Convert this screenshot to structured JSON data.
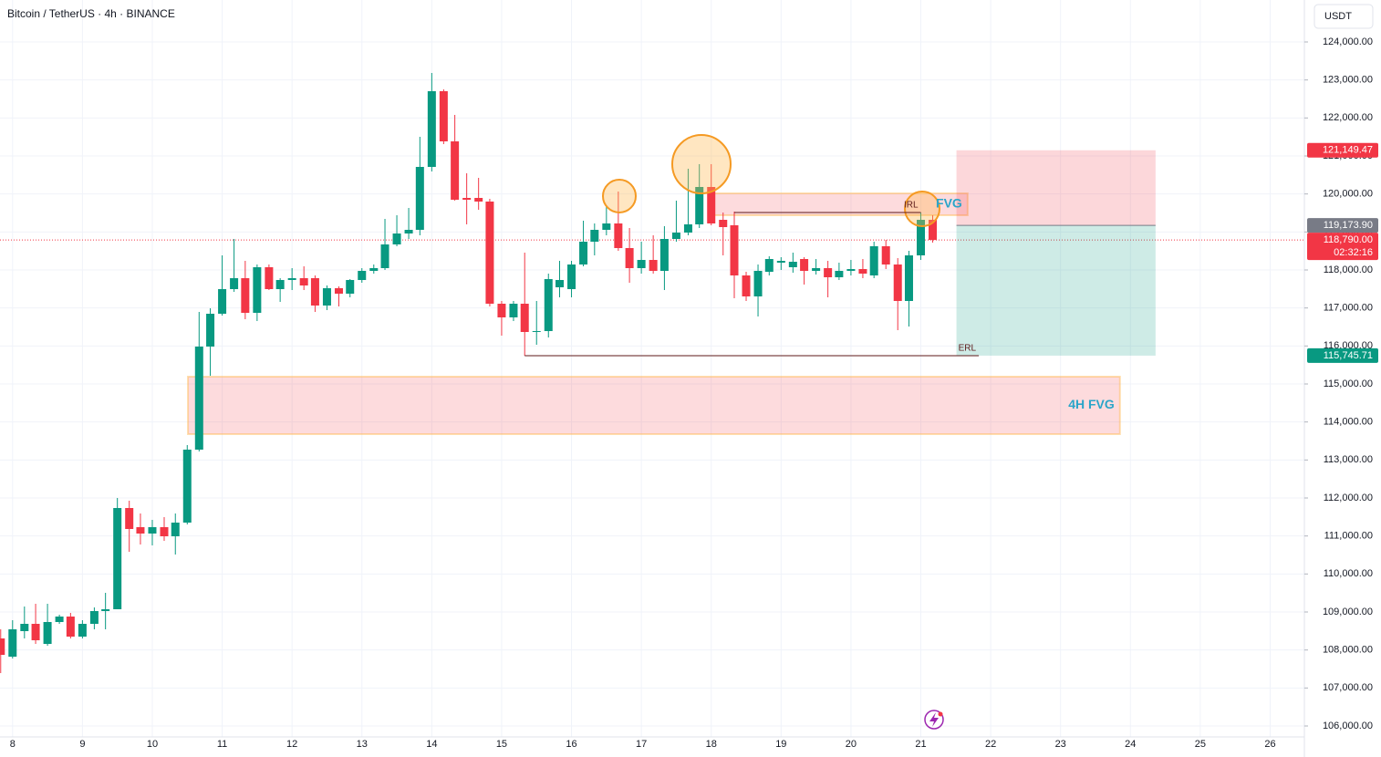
{
  "header": {
    "symbol": "Bitcoin / TetherUS · 4h · BINANCE",
    "currency": "USDT"
  },
  "chart_data": {
    "type": "candlestick",
    "up_color": "#089981",
    "down_color": "#f23645",
    "grid": true,
    "xlim": [
      7.82,
      26.49
    ],
    "ylim": [
      105712,
      125104
    ],
    "xticks": [
      8,
      9,
      10,
      11,
      12,
      13,
      14,
      15,
      16,
      17,
      18,
      19,
      20,
      21,
      22,
      23,
      24,
      25,
      26
    ],
    "yticks": [
      {
        "value": 106000,
        "label": "106,000.00"
      },
      {
        "value": 107000,
        "label": "107,000.00"
      },
      {
        "value": 108000,
        "label": "108,000.00"
      },
      {
        "value": 109000,
        "label": "109,000.00"
      },
      {
        "value": 110000,
        "label": "110,000.00"
      },
      {
        "value": 111000,
        "label": "111,000.00"
      },
      {
        "value": 112000,
        "label": "112,000.00"
      },
      {
        "value": 113000,
        "label": "113,000.00"
      },
      {
        "value": 114000,
        "label": "114,000.00"
      },
      {
        "value": 115000,
        "label": "115,000.00"
      },
      {
        "value": 116000,
        "label": "116,000.00"
      },
      {
        "value": 117000,
        "label": "117,000.00"
      },
      {
        "value": 118000,
        "label": "118,000.00"
      },
      {
        "value": 119000,
        "label": "119,000.00"
      },
      {
        "value": 120000,
        "label": "120,000.00"
      },
      {
        "value": 121000,
        "label": "121,000.00"
      },
      {
        "value": 122000,
        "label": "122,000.00"
      },
      {
        "value": 123000,
        "label": "123,000.00"
      },
      {
        "value": 124000,
        "label": "124,000.00"
      }
    ],
    "x": [
      7.83,
      8,
      8.17,
      8.33,
      8.5,
      8.67,
      8.83,
      9,
      9.17,
      9.33,
      9.5,
      9.67,
      9.83,
      10,
      10.17,
      10.33,
      10.5,
      10.67,
      10.83,
      11,
      11.17,
      11.33,
      11.5,
      11.67,
      11.83,
      12,
      12.17,
      12.33,
      12.5,
      12.67,
      12.83,
      13,
      13.17,
      13.33,
      13.5,
      13.67,
      13.83,
      14,
      14.17,
      14.33,
      14.5,
      14.67,
      14.83,
      15,
      15.17,
      15.33,
      15.5,
      15.67,
      15.83,
      16,
      16.17,
      16.33,
      16.5,
      16.67,
      16.83,
      17,
      17.17,
      17.33,
      17.5,
      17.67,
      17.83,
      18,
      18.17,
      18.33,
      18.5,
      18.67,
      18.83,
      19,
      19.17,
      19.33,
      19.5,
      19.67,
      19.83,
      20,
      20.17,
      20.33,
      20.5,
      20.67,
      20.83,
      21,
      21.17
    ],
    "open": [
      108304,
      107824,
      108496,
      108688,
      108160,
      108736,
      108880,
      108352,
      108688,
      109024,
      109072,
      111736,
      111232,
      111064,
      111232,
      110992,
      111352,
      113272,
      115984,
      116848,
      117496,
      117784,
      116872,
      118072,
      117496,
      117736,
      117784,
      117784,
      117064,
      117520,
      117376,
      117736,
      117976,
      118048,
      118672,
      118960,
      119056,
      120712,
      122704,
      121384,
      119896,
      119896,
      119800,
      117112,
      116752,
      117112,
      116368,
      116392,
      117544,
      117496,
      118144,
      118744,
      119056,
      119224,
      118576,
      118048,
      118264,
      117976,
      118816,
      118984,
      119200,
      120184,
      119320,
      119176,
      117856,
      117304,
      117952,
      118192,
      118072,
      118288,
      117976,
      118048,
      117808,
      117976,
      118024,
      117856,
      118624,
      118144,
      117184,
      118384,
      119320
    ],
    "high": [
      108544,
      108784,
      109144,
      109216,
      109216,
      108928,
      108976,
      108784,
      109120,
      109504,
      112000,
      111928,
      111592,
      111424,
      111496,
      111592,
      113392,
      116896,
      116992,
      118384,
      118816,
      118240,
      118144,
      118144,
      117784,
      118048,
      118096,
      117856,
      117592,
      117568,
      117760,
      118048,
      118144,
      119344,
      119440,
      119632,
      121504,
      123184,
      122752,
      122080,
      120544,
      120424,
      119872,
      117184,
      117184,
      118456,
      117184,
      117904,
      118240,
      118240,
      119296,
      119224,
      119704,
      120064,
      119104,
      118744,
      118912,
      119152,
      119824,
      120664,
      120784,
      120784,
      119512,
      119536,
      117952,
      118144,
      118360,
      118336,
      118456,
      118336,
      118288,
      118240,
      118192,
      118264,
      118288,
      118744,
      118792,
      118312,
      118504,
      119512,
      119440
    ],
    "low": [
      107392,
      107776,
      108304,
      108160,
      108112,
      108688,
      108304,
      108304,
      108544,
      108544,
      109072,
      110584,
      110776,
      110752,
      110872,
      110512,
      111304,
      113224,
      115216,
      116800,
      117424,
      116704,
      116656,
      117472,
      117160,
      117472,
      117472,
      116896,
      116944,
      117040,
      117280,
      117664,
      117904,
      118000,
      118624,
      118816,
      118912,
      120592,
      121312,
      119824,
      119200,
      119584,
      117040,
      116272,
      116656,
      115744,
      116032,
      116224,
      117280,
      117280,
      118096,
      118384,
      118912,
      118504,
      117664,
      117904,
      117904,
      117472,
      118744,
      118912,
      119104,
      119176,
      118384,
      117256,
      117184,
      116776,
      117856,
      118000,
      117928,
      117616,
      117880,
      117280,
      117736,
      117856,
      117784,
      117784,
      118024,
      116416,
      116512,
      118264,
      118720
    ],
    "close": [
      107872,
      108544,
      108688,
      108256,
      108736,
      108880,
      108352,
      108688,
      109024,
      109072,
      111736,
      111184,
      111064,
      111232,
      110992,
      111352,
      113272,
      115984,
      116848,
      117496,
      117784,
      116872,
      118072,
      117496,
      117736,
      117784,
      117592,
      117064,
      117520,
      117376,
      117736,
      117976,
      118048,
      118672,
      118960,
      119056,
      120712,
      122704,
      121384,
      119848,
      119848,
      119800,
      117112,
      116752,
      117112,
      116368,
      116392,
      117760,
      117736,
      118144,
      118744,
      119056,
      119224,
      118576,
      118048,
      118264,
      117976,
      118816,
      118984,
      119200,
      120184,
      119224,
      119128,
      117856,
      117304,
      117976,
      118288,
      118240,
      118216,
      117976,
      118048,
      117808,
      117976,
      118024,
      117904,
      118624,
      118144,
      117184,
      118384,
      119320,
      118790
    ],
    "zones": [
      {
        "label": "4H FVG",
        "top": 115192,
        "bottom": 113680,
        "x0": 10.51,
        "x1": 23.85
      },
      {
        "label": "FVG",
        "top": 120016,
        "bottom": 119440,
        "x0": 18.0,
        "x1": 21.67
      }
    ],
    "levels": [
      {
        "label": "IRL",
        "value": 119512,
        "x0": 18.33,
        "x1": 21.0
      },
      {
        "label": "ERL",
        "value": 115744,
        "x0": 15.33,
        "x1": 21.83
      }
    ],
    "position": {
      "x0": 21.51,
      "x1": 24.36,
      "stop": {
        "value": 121149.47,
        "label": "121,149.47"
      },
      "entry": {
        "value": 119173.9,
        "label": "119,173.90"
      },
      "target": {
        "value": 115745.71,
        "label": "115,745.71"
      }
    },
    "last_price": {
      "value": 118790,
      "label": "118,790.00",
      "countdown": "02:32:16"
    }
  }
}
